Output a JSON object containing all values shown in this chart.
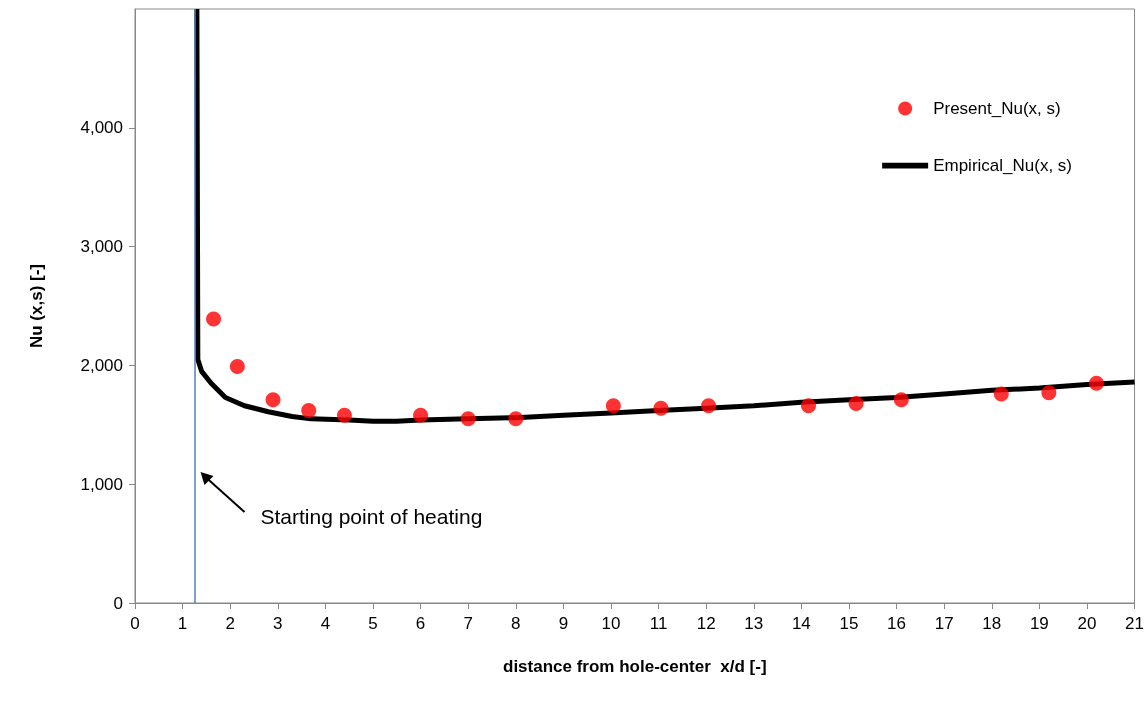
{
  "chart_data": {
    "type": "scatter",
    "xlabel": "distance from hole-center  x/d [-]",
    "ylabel": "Nu (x,s) [-]",
    "xlim": [
      0,
      21
    ],
    "xticks": [
      0,
      1,
      2,
      3,
      4,
      5,
      6,
      7,
      8,
      9,
      10,
      11,
      12,
      13,
      14,
      15,
      16,
      17,
      18,
      19,
      20,
      21
    ],
    "ylim": [
      0,
      5000
    ],
    "yticks": [
      {
        "value": 0,
        "label": "0"
      },
      {
        "value": 1000,
        "label": "1,000"
      },
      {
        "value": 2000,
        "label": "2,000"
      },
      {
        "value": 3000,
        "label": "3,000"
      },
      {
        "value": 4000,
        "label": "4,000"
      }
    ],
    "grid": false,
    "legend": "top right",
    "series": [
      {
        "name": "Present_Nu(x, s)",
        "marker": "circle",
        "color": "#ff0000",
        "x": [
          1.65,
          2.15,
          2.9,
          3.65,
          4.4,
          6.0,
          7.0,
          8.0,
          10.05,
          11.05,
          12.05,
          14.15,
          15.15,
          16.1,
          18.2,
          19.2,
          20.2
        ],
        "values": [
          2390,
          1990,
          1710,
          1620,
          1580,
          1580,
          1550,
          1550,
          1660,
          1640,
          1660,
          1660,
          1680,
          1710,
          1760,
          1770,
          1850
        ]
      },
      {
        "name": "Empirical_Nu(x, s)",
        "type": "line",
        "marker": "none",
        "line_style": "solid",
        "color": "#000000",
        "x": [
          1.3,
          1.32,
          1.4,
          1.6,
          1.9,
          2.3,
          2.8,
          3.3,
          3.7,
          4.5,
          5.0,
          5.5,
          6.0,
          7.0,
          8.0,
          9.0,
          10.0,
          11.0,
          12.0,
          13.0,
          14.0,
          15.0,
          16.0,
          17.0,
          18.0,
          19.0,
          20.0,
          21.0
        ],
        "values": [
          5000,
          2050,
          1950,
          1850,
          1730,
          1660,
          1610,
          1570,
          1550,
          1540,
          1530,
          1530,
          1540,
          1550,
          1560,
          1580,
          1600,
          1620,
          1640,
          1660,
          1690,
          1710,
          1730,
          1760,
          1790,
          1810,
          1840,
          1860
        ]
      }
    ],
    "ref_lines": [
      {
        "axis": "x",
        "value": 1.25,
        "color": "#4f81bd"
      }
    ],
    "annotations": [
      "Starting point of heating"
    ]
  }
}
